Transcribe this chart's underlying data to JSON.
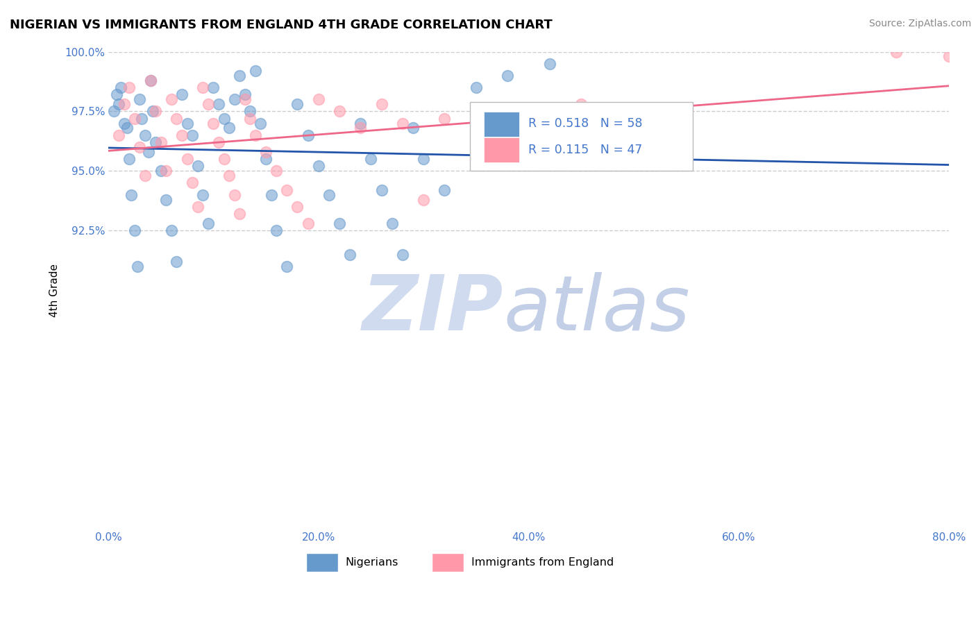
{
  "title": "NIGERIAN VS IMMIGRANTS FROM ENGLAND 4TH GRADE CORRELATION CHART",
  "source": "Source: ZipAtlas.com",
  "ylabel": "4th Grade",
  "xlim": [
    0.0,
    80.0
  ],
  "ylim": [
    80.0,
    100.0
  ],
  "xtick_labels": [
    "0.0%",
    "20.0%",
    "40.0%",
    "60.0%",
    "80.0%"
  ],
  "xtick_values": [
    0.0,
    20.0,
    40.0,
    60.0,
    80.0
  ],
  "ytick_labels": [
    "92.5%",
    "95.0%",
    "97.5%",
    "100.0%"
  ],
  "ytick_values": [
    92.5,
    95.0,
    97.5,
    100.0
  ],
  "grid_color": "#cccccc",
  "background_color": "#ffffff",
  "legend_R1": "R = 0.518",
  "legend_N1": "N = 58",
  "legend_R2": "R = 0.115",
  "legend_N2": "N = 47",
  "color_blue": "#6699cc",
  "color_pink": "#ff99aa",
  "color_blue_line": "#2255aa",
  "color_pink_line": "#ee6688",
  "color_text_blue": "#4477cc",
  "nigerians_x": [
    0.5,
    0.8,
    1.0,
    1.2,
    1.5,
    1.8,
    2.0,
    2.2,
    2.5,
    2.8,
    3.0,
    3.2,
    3.5,
    3.8,
    4.0,
    4.2,
    4.5,
    5.0,
    5.5,
    6.0,
    6.5,
    7.0,
    7.5,
    8.0,
    8.5,
    9.0,
    9.5,
    10.0,
    10.5,
    11.0,
    11.5,
    12.0,
    12.5,
    13.0,
    13.5,
    14.0,
    14.5,
    15.0,
    15.5,
    16.0,
    17.0,
    18.0,
    19.0,
    20.0,
    21.0,
    22.0,
    23.0,
    24.0,
    25.0,
    26.0,
    27.0,
    28.0,
    29.0,
    30.0,
    32.0,
    35.0,
    38.0,
    42.0
  ],
  "nigerians_y": [
    97.5,
    98.2,
    97.8,
    98.5,
    97.0,
    96.8,
    95.5,
    94.0,
    92.5,
    91.0,
    98.0,
    97.2,
    96.5,
    95.8,
    98.8,
    97.5,
    96.2,
    95.0,
    93.8,
    92.5,
    91.2,
    98.2,
    97.0,
    96.5,
    95.2,
    94.0,
    92.8,
    98.5,
    97.8,
    97.2,
    96.8,
    98.0,
    99.0,
    98.2,
    97.5,
    99.2,
    97.0,
    95.5,
    94.0,
    92.5,
    91.0,
    97.8,
    96.5,
    95.2,
    94.0,
    92.8,
    91.5,
    97.0,
    95.5,
    94.2,
    92.8,
    91.5,
    96.8,
    95.5,
    94.2,
    98.5,
    99.0,
    99.5
  ],
  "england_x": [
    1.0,
    1.5,
    2.0,
    2.5,
    3.0,
    3.5,
    4.0,
    4.5,
    5.0,
    5.5,
    6.0,
    6.5,
    7.0,
    7.5,
    8.0,
    8.5,
    9.0,
    9.5,
    10.0,
    10.5,
    11.0,
    11.5,
    12.0,
    12.5,
    13.0,
    13.5,
    14.0,
    15.0,
    16.0,
    17.0,
    18.0,
    19.0,
    20.0,
    22.0,
    24.0,
    26.0,
    28.0,
    30.0,
    32.0,
    35.0,
    38.0,
    42.0,
    45.0,
    50.0,
    75.0,
    80.0,
    55.0
  ],
  "england_y": [
    96.5,
    97.8,
    98.5,
    97.2,
    96.0,
    94.8,
    98.8,
    97.5,
    96.2,
    95.0,
    98.0,
    97.2,
    96.5,
    95.5,
    94.5,
    93.5,
    98.5,
    97.8,
    97.0,
    96.2,
    95.5,
    94.8,
    94.0,
    93.2,
    98.0,
    97.2,
    96.5,
    95.8,
    95.0,
    94.2,
    93.5,
    92.8,
    98.0,
    97.5,
    96.8,
    97.8,
    97.0,
    93.8,
    97.2,
    97.5,
    96.2,
    97.0,
    97.8,
    97.5,
    100.0,
    99.8,
    97.5
  ]
}
